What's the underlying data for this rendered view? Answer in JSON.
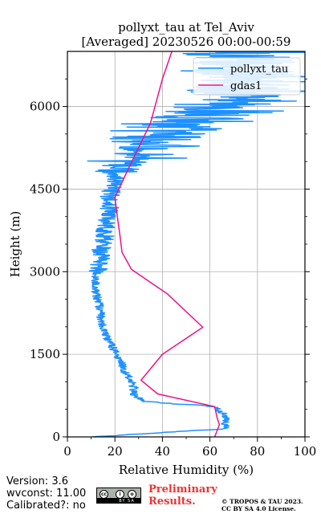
{
  "chart_data": {
    "type": "line",
    "title": "pollyxt_tau at Tel_Aviv",
    "subtitle": "[Averaged] 20230526 00:00-00:59",
    "xlabel": "Relative Humidity (%)",
    "ylabel": "Height (m)",
    "xlim": [
      0,
      100
    ],
    "ylim": [
      0,
      7000
    ],
    "xticks": [
      0,
      20,
      40,
      60,
      80,
      100
    ],
    "yticks": [
      0,
      1500,
      3000,
      4500,
      6000
    ],
    "grid": true,
    "legend_position": "top-right",
    "series": [
      {
        "name": "pollyxt_tau",
        "color": "#1e90ff",
        "style": "noisy-profile",
        "x": [
          10,
          67,
          66,
          67,
          65,
          63,
          60,
          55,
          44,
          32,
          28,
          28,
          27,
          24,
          22,
          20,
          18,
          16,
          15,
          14,
          14,
          13,
          12,
          12,
          12,
          13,
          14,
          14,
          15,
          16,
          16,
          17,
          18,
          17,
          18,
          19,
          20,
          21,
          24,
          28,
          33,
          40,
          50,
          60,
          70,
          75,
          75
        ],
        "y": [
          0,
          150,
          250,
          350,
          450,
          520,
          560,
          580,
          600,
          650,
          750,
          900,
          1000,
          1200,
          1400,
          1550,
          1700,
          1850,
          2000,
          2150,
          2300,
          2450,
          2600,
          2750,
          2900,
          3050,
          3200,
          3350,
          3500,
          3650,
          3800,
          3950,
          4100,
          4250,
          4400,
          4550,
          4700,
          4850,
          5000,
          5150,
          5300,
          5500,
          5700,
          5900,
          6100,
          6500,
          7000
        ]
      },
      {
        "name": "gdas1",
        "color": "#ee1188",
        "style": "line",
        "x": [
          62,
          64,
          63,
          62,
          38,
          31,
          40,
          57,
          42,
          27,
          23,
          22,
          21,
          20,
          26,
          35,
          40,
          44
        ],
        "y": [
          0,
          220,
          350,
          550,
          780,
          1030,
          1500,
          1990,
          2600,
          3040,
          3350,
          3700,
          4000,
          4350,
          4900,
          5700,
          6500,
          7000
        ]
      }
    ]
  },
  "footer": {
    "version": "Version: 3.6",
    "wvconst": "wvconst:  11.00",
    "calibrated": "Calibrated?: no",
    "badge_text": "BY SA",
    "cc_icon_1": "cc",
    "cc_icon_2": "i",
    "cc_icon_3": "o",
    "preliminary_1": "Preliminary",
    "preliminary_2": "Results.",
    "copyright_1": "© TROPOS & TAU 2023.",
    "copyright_2": "CC BY SA 4.0 License."
  }
}
